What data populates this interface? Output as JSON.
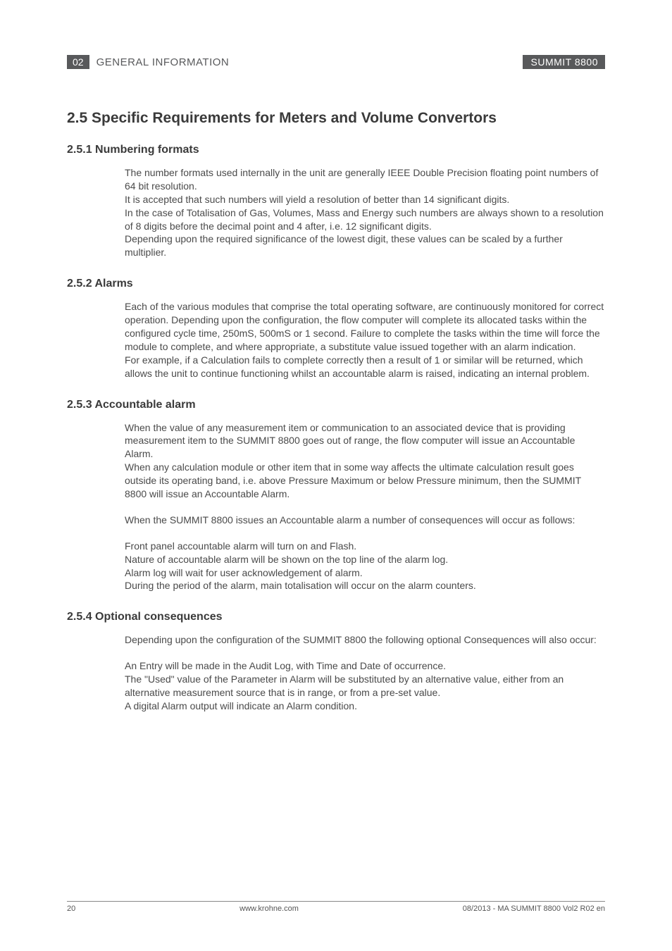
{
  "header": {
    "chapter_number": "02",
    "chapter_title": "GENERAL INFORMATION",
    "product": "SUMMIT 8800"
  },
  "sections": {
    "main_heading": "2.5 Specific Requirements for Meters and Volume Convertors",
    "s251": {
      "heading": "2.5.1 Numbering formats",
      "p1": "The number formats used internally in the unit are generally IEEE Double Precision floating point numbers of 64 bit resolution.",
      "p2": "It is accepted that such numbers will yield a resolution of better than 14 significant digits.",
      "p3": "In the case of Totalisation of Gas, Volumes, Mass and Energy such numbers are always shown to a resolution of 8 digits before the decimal point and 4 after, i.e. 12 significant digits.",
      "p4": "Depending upon the required significance of the lowest digit, these values can be scaled by a further multiplier."
    },
    "s252": {
      "heading": "2.5.2 Alarms",
      "p1": "Each of the various modules that comprise the total operating software, are continuously monitored for correct operation. Depending upon the configuration, the flow computer will complete its allocated tasks within the configured cycle time, 250mS, 500mS or 1 second. Failure to complete the tasks within the time will force the module to complete, and where appropriate, a substitute value issued together with an alarm indication.",
      "p2": "For example, if a Calculation fails to complete correctly then a result of 1 or similar will be returned, which allows the unit to continue functioning whilst an accountable alarm is raised, indicating an internal problem."
    },
    "s253": {
      "heading": "2.5.3 Accountable alarm",
      "p1": "When the value of any measurement item or communication to an associated device that is providing measurement item to the SUMMIT 8800 goes out of range, the flow computer will issue an Accountable Alarm.",
      "p2": "When any calculation module or other item that in some way affects the ultimate calculation result goes outside its operating band, i.e. above Pressure Maximum or below Pressure minimum, then the SUMMIT 8800 will issue an Accountable Alarm.",
      "p3": "When the SUMMIT 8800 issues an Accountable alarm a number of consequences will occur as follows:",
      "p4": "Front panel accountable alarm will turn on and Flash.",
      "p5": "Nature of accountable alarm will be shown on the top line of the alarm log.",
      "p6": "Alarm log will wait for user acknowledgement of alarm.",
      "p7": "During the period of the alarm, main totalisation will occur on the alarm counters."
    },
    "s254": {
      "heading": "2.5.4 Optional consequences",
      "p1": "Depending upon the configuration of the SUMMIT 8800 the following optional Consequences will also occur:",
      "p2": "An Entry will be made in the Audit Log, with Time and Date of occurrence.",
      "p3": "The \"Used\" value of the Parameter in Alarm will be substituted by an alternative value, either from an alternative measurement source that is in range, or from a pre-set value.",
      "p4": "A digital Alarm output will indicate an Alarm condition."
    }
  },
  "footer": {
    "page_number": "20",
    "website": "www.krohne.com",
    "doc_ref": "08/2013 - MA SUMMIT 8800 Vol2 R02 en"
  },
  "colors": {
    "header_box_bg": "#58595b",
    "header_box_fg": "#ffffff",
    "heading_color": "#3a3a3a",
    "body_color": "#4a4a4a",
    "footer_border": "#888888"
  }
}
